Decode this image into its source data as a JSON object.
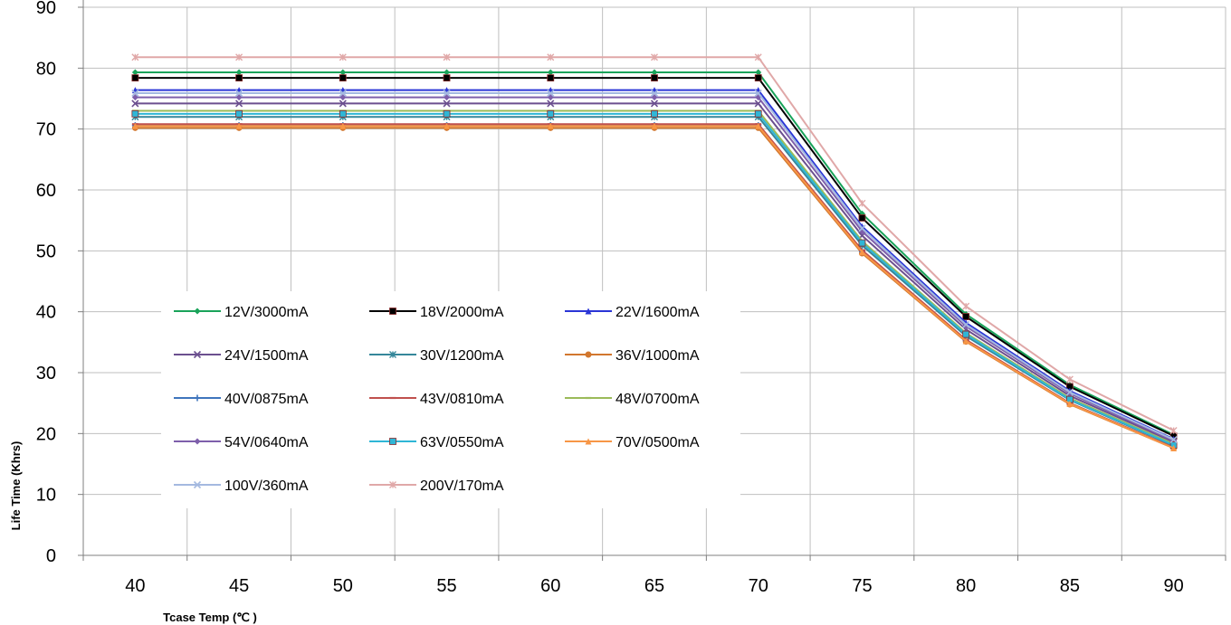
{
  "chart_data": {
    "type": "line",
    "title": "",
    "xlabel": "Tcase Temp (℃ )",
    "ylabel": "Life Time (Khrs)",
    "x": [
      40,
      45,
      50,
      55,
      60,
      65,
      70,
      75,
      80,
      85,
      90
    ],
    "xlim": [
      37.5,
      92.5
    ],
    "ylim": [
      0,
      90
    ],
    "yticks": [
      0,
      10,
      20,
      30,
      40,
      50,
      60,
      70,
      80,
      90
    ],
    "grid": true,
    "legend_position": "center-left",
    "series": [
      {
        "name": "12V/3000mA",
        "color": "#1aa35a",
        "marker": "diamond",
        "values": [
          79.3,
          79.3,
          79.3,
          79.3,
          79.3,
          79.3,
          79.3,
          56.1,
          39.6,
          28.0,
          19.8
        ]
      },
      {
        "name": "18V/2000mA",
        "color": "#000000",
        "marker": "square",
        "values": [
          78.4,
          78.4,
          78.4,
          78.4,
          78.4,
          78.4,
          78.4,
          55.4,
          39.2,
          27.7,
          19.6
        ]
      },
      {
        "name": "22V/1600mA",
        "color": "#2a35d6",
        "marker": "triangle",
        "values": [
          76.4,
          76.4,
          76.4,
          76.4,
          76.4,
          76.4,
          76.4,
          54.0,
          38.2,
          27.0,
          19.1
        ]
      },
      {
        "name": "24V/1500mA",
        "color": "#6b4f8f",
        "marker": "x",
        "values": [
          74.2,
          74.2,
          74.2,
          74.2,
          74.2,
          74.2,
          74.2,
          52.5,
          37.1,
          26.2,
          18.6
        ]
      },
      {
        "name": "30V/1200mA",
        "color": "#35879a",
        "marker": "star",
        "values": [
          72.0,
          72.0,
          72.0,
          72.0,
          72.0,
          72.0,
          72.0,
          50.9,
          36.0,
          25.5,
          18.0
        ]
      },
      {
        "name": "36V/1000mA",
        "color": "#d2772e",
        "marker": "circle",
        "values": [
          70.2,
          70.2,
          70.2,
          70.2,
          70.2,
          70.2,
          70.2,
          49.6,
          35.1,
          24.8,
          17.6
        ]
      },
      {
        "name": "40V/0875mA",
        "color": "#3f75bd",
        "marker": "plus",
        "values": [
          70.6,
          70.6,
          70.6,
          70.6,
          70.6,
          70.6,
          70.6,
          49.9,
          35.3,
          25.0,
          17.7
        ]
      },
      {
        "name": "43V/0810mA",
        "color": "#c0504d",
        "marker": "dash",
        "values": [
          70.8,
          70.8,
          70.8,
          70.8,
          70.8,
          70.8,
          70.8,
          50.1,
          35.4,
          25.0,
          17.7
        ]
      },
      {
        "name": "48V/0700mA",
        "color": "#9bbb59",
        "marker": "dash",
        "values": [
          73.0,
          73.0,
          73.0,
          73.0,
          73.0,
          73.0,
          73.0,
          51.6,
          36.5,
          25.8,
          18.3
        ]
      },
      {
        "name": "54V/0640mA",
        "color": "#7e5fab",
        "marker": "diamond",
        "values": [
          75.2,
          75.2,
          75.2,
          75.2,
          75.2,
          75.2,
          75.2,
          53.2,
          37.6,
          26.6,
          18.8
        ]
      },
      {
        "name": "63V/0550mA",
        "color": "#2fb6d6",
        "marker": "square",
        "values": [
          72.5,
          72.5,
          72.5,
          72.5,
          72.5,
          72.5,
          72.5,
          51.3,
          36.3,
          25.6,
          18.1
        ]
      },
      {
        "name": "70V/0500mA",
        "color": "#f79646",
        "marker": "triangle",
        "values": [
          70.5,
          70.5,
          70.5,
          70.5,
          70.5,
          70.5,
          70.5,
          49.8,
          35.2,
          24.9,
          17.6
        ]
      },
      {
        "name": "100V/360mA",
        "color": "#a4b9e0",
        "marker": "x",
        "values": [
          75.9,
          75.9,
          75.9,
          75.9,
          75.9,
          75.9,
          75.9,
          53.7,
          37.9,
          26.8,
          19.0
        ]
      },
      {
        "name": "200V/170mA",
        "color": "#e0a8a8",
        "marker": "star",
        "values": [
          81.8,
          81.8,
          81.8,
          81.8,
          81.8,
          81.8,
          81.8,
          57.8,
          40.9,
          28.9,
          20.5
        ]
      }
    ]
  }
}
